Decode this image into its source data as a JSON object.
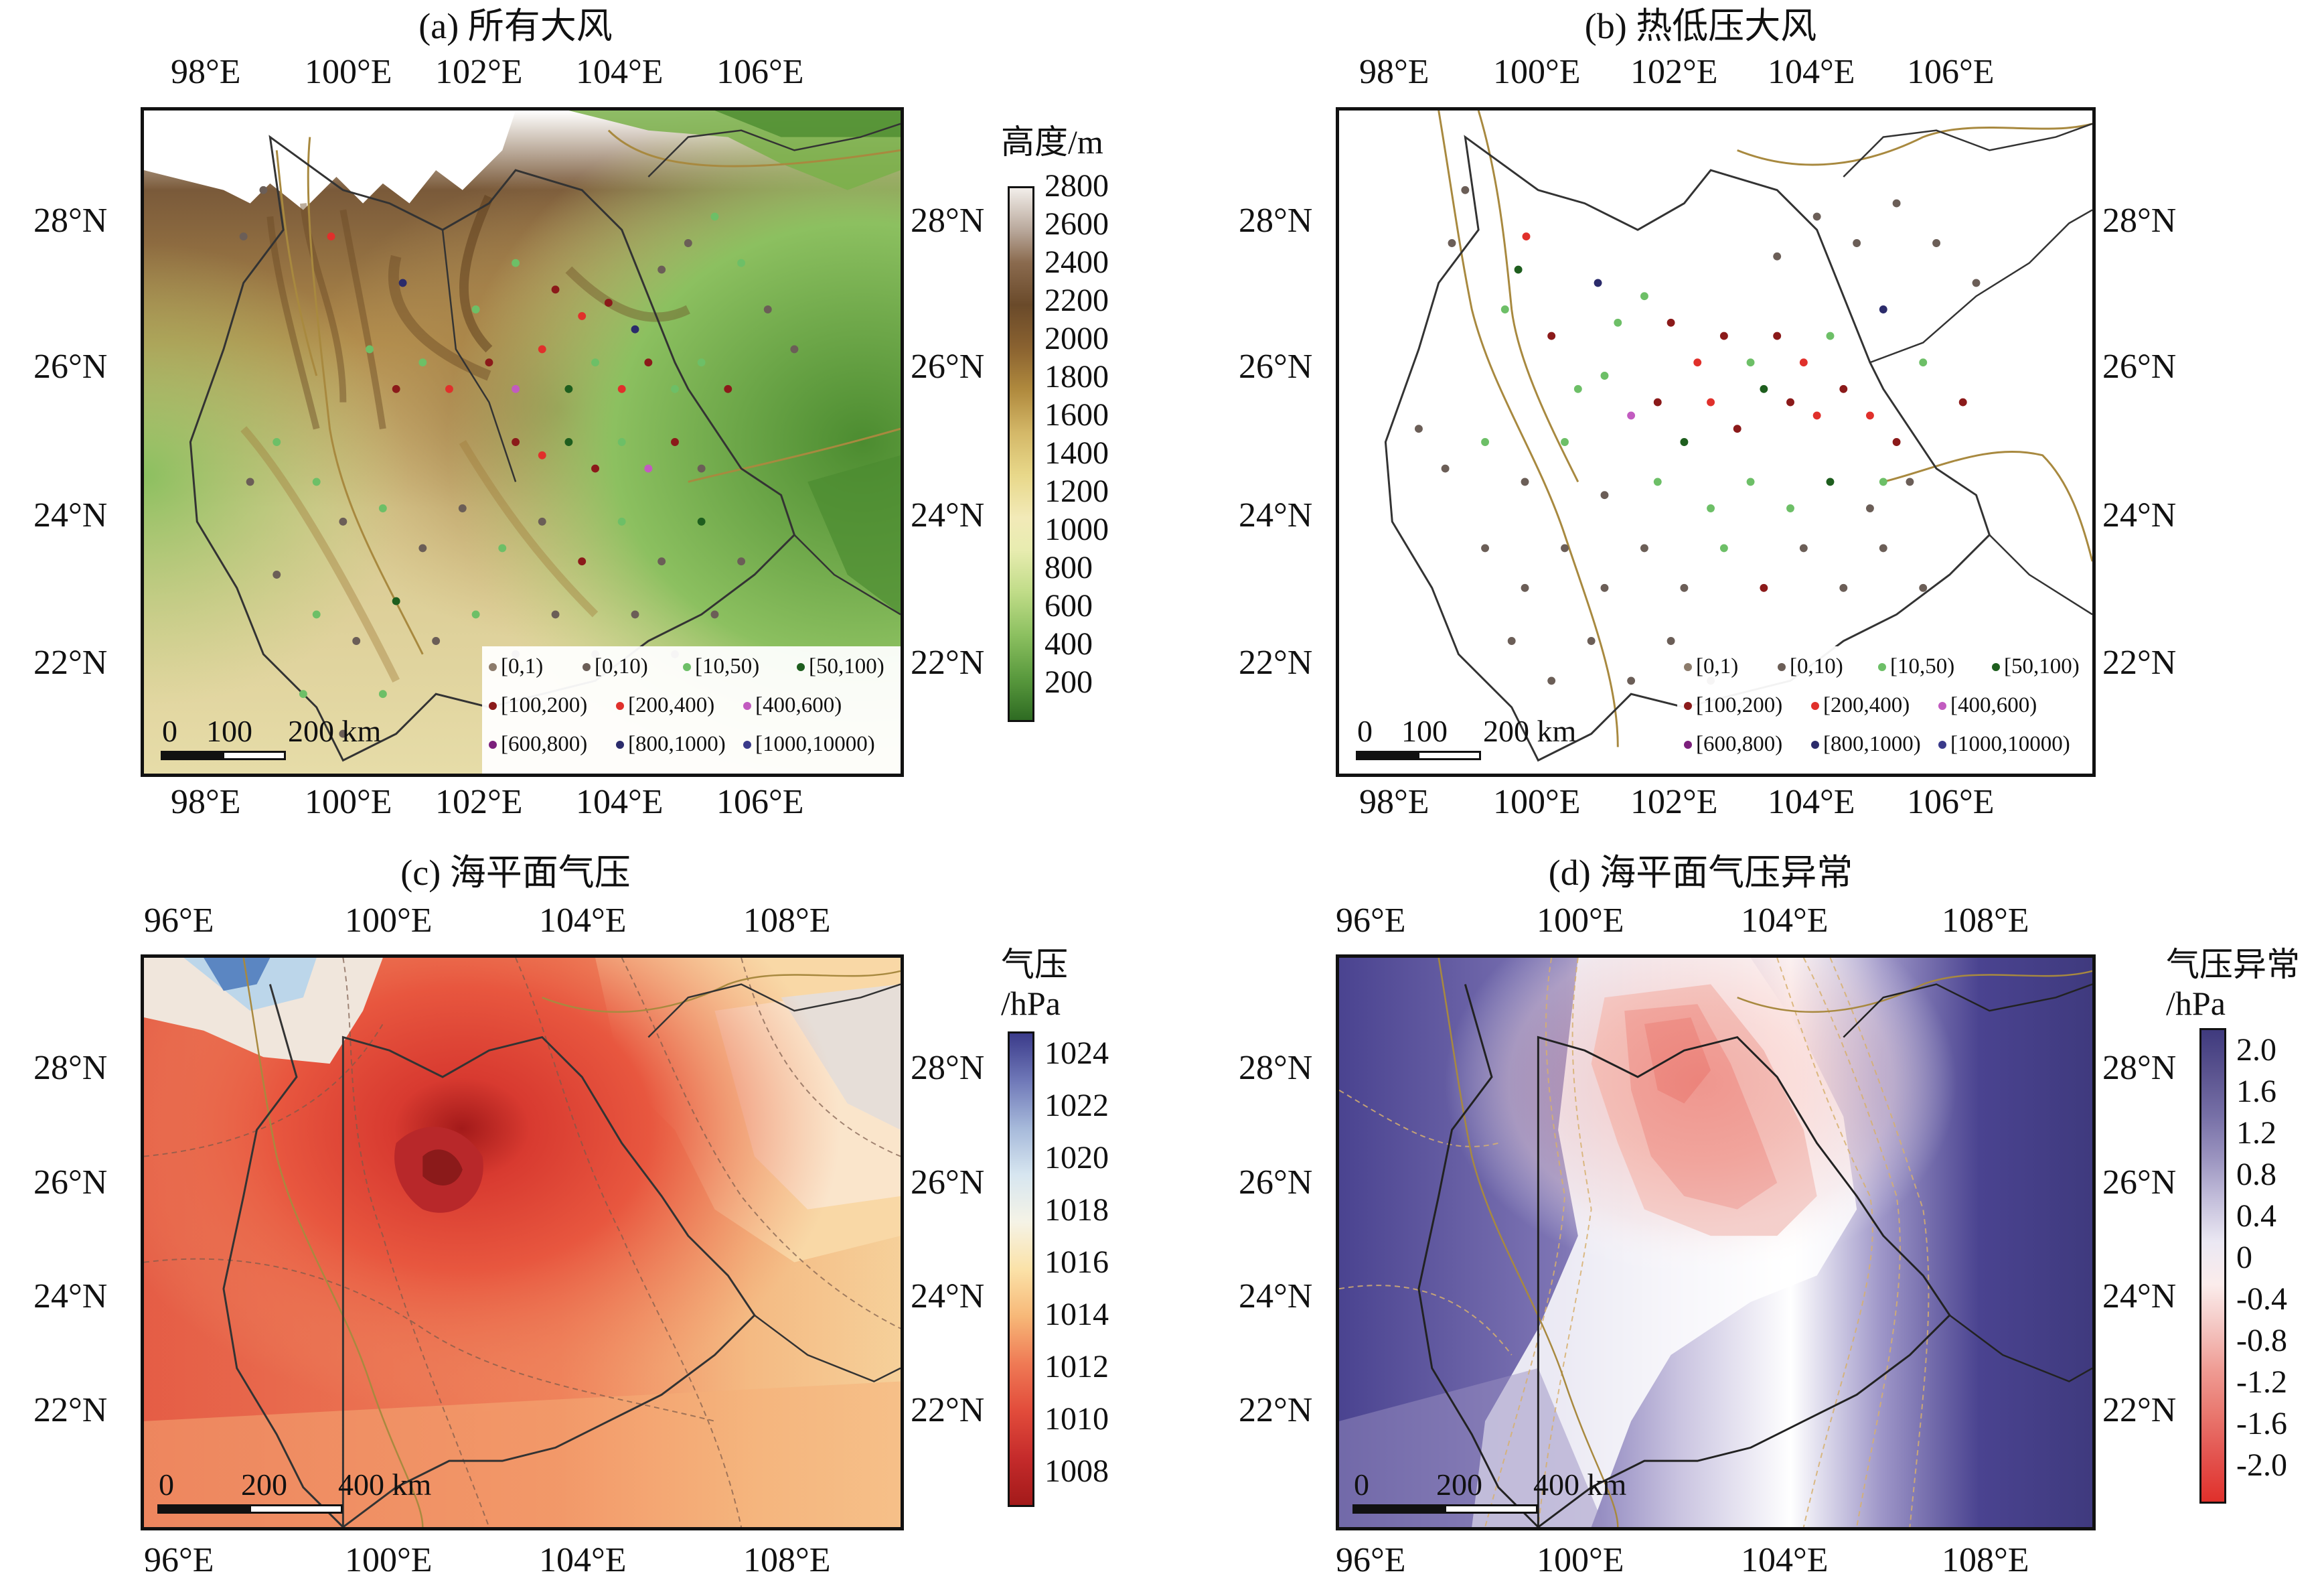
{
  "panels": {
    "a": {
      "title": "(a) 所有大风",
      "cbar_title": "高度/m",
      "cbar_labels": [
        "2800",
        "2600",
        "2400",
        "2200",
        "2000",
        "1800",
        "1600",
        "1400",
        "1200",
        "1000",
        "800",
        "600",
        "400",
        "200"
      ],
      "lon_labels": [
        "98°E",
        "100°E",
        "102°E",
        "104°E",
        "106°E"
      ],
      "lat_labels": [
        "28°N",
        "26°N",
        "24°N",
        "22°N"
      ],
      "scale": {
        "l0": "0",
        "l1": "100",
        "l2": "200 km"
      }
    },
    "b": {
      "title": "(b) 热低压大风",
      "lon_labels": [
        "98°E",
        "100°E",
        "102°E",
        "104°E",
        "106°E"
      ],
      "lat_labels": [
        "28°N",
        "26°N",
        "24°N",
        "22°N"
      ],
      "scale": {
        "l0": "0",
        "l1": "100",
        "l2": "200 km"
      }
    },
    "c": {
      "title": "(c) 海平面气压",
      "cbar_title_1": "气压",
      "cbar_title_2": "/hPa",
      "cbar_labels": [
        "1024",
        "1022",
        "1020",
        "1018",
        "1016",
        "1014",
        "1012",
        "1010",
        "1008"
      ],
      "lon_labels": [
        "96°E",
        "100°E",
        "104°E",
        "108°E"
      ],
      "lat_labels": [
        "28°N",
        "26°N",
        "24°N",
        "22°N"
      ],
      "scale": {
        "l0": "0",
        "l1": "200",
        "l2": "400 km"
      }
    },
    "d": {
      "title": "(d) 海平面气压异常",
      "cbar_title_1": "气压异常",
      "cbar_title_2": "/hPa",
      "cbar_labels": [
        "2.0",
        "1.6",
        "1.2",
        "0.8",
        "0.4",
        "0",
        "-0.4",
        "-0.8",
        "-1.2",
        "-1.6",
        "-2.0"
      ],
      "lon_labels": [
        "96°E",
        "100°E",
        "104°E",
        "108°E"
      ],
      "lat_labels": [
        "28°N",
        "26°N",
        "24°N",
        "22°N"
      ],
      "scale": {
        "l0": "0",
        "l1": "200",
        "l2": "400 km"
      }
    }
  },
  "legend": {
    "items": [
      {
        "label": "[0,1)",
        "color": "#8c7b6b"
      },
      {
        "label": "[0,10)",
        "color": "#6b5e57"
      },
      {
        "label": "[10,50)",
        "color": "#6dbf67"
      },
      {
        "label": "[50,100)",
        "color": "#1e5e1e"
      },
      {
        "label": "[100,200)",
        "color": "#8b1a1a"
      },
      {
        "label": "[200,400)",
        "color": "#e0302b"
      },
      {
        "label": "[400,600)",
        "color": "#c25bc0"
      },
      {
        "label": "[600,800)",
        "color": "#7b1f7b"
      },
      {
        "label": "[800,1000)",
        "color": "#2b2b6b"
      },
      {
        "label": "[1000,10000)",
        "color": "#3a3a8a"
      }
    ]
  },
  "colors": {
    "elev_low": "#2e6b22",
    "elev_mid": "#e8dca0",
    "elev_high": "#5a3a1a",
    "elev_top": "#ffffff",
    "press_low": "#a31a1a",
    "press_high": "#3b3b8a",
    "anom_pos": "#3f3a7e",
    "anom_neg": "#e0453b"
  }
}
